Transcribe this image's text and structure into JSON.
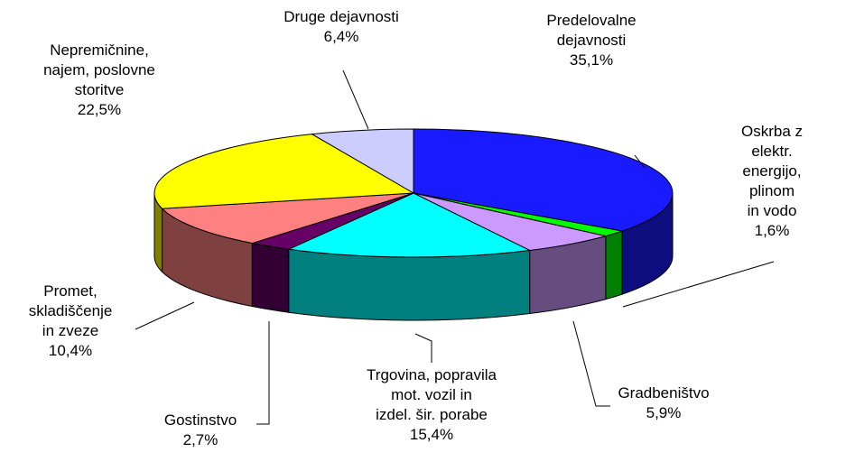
{
  "chart_data": {
    "type": "pie3d",
    "categories": [
      "Predelovalne\ndejavnosti",
      "Oskrba z elektr.\nenergijo,\nplinom\nin vodo",
      "Gradbeništvo",
      "Trgovina, popravila\nmot. vozil in\nizdel. šir. porabe",
      "Gostinstvo",
      "Promet,\nskladiščenje\nin zveze",
      "Nepremičnine,\nnajem, poslovne\nstoritve",
      "Druge dejavnosti"
    ],
    "values": [
      35.1,
      1.6,
      5.9,
      15.4,
      2.7,
      10.4,
      22.5,
      6.4
    ],
    "value_labels": [
      "35,1%",
      "1,6%",
      "5,9%",
      "15,4%",
      "2,7%",
      "10,4%",
      "22,5%",
      "6,4%"
    ],
    "colors": [
      "#1a1aff",
      "#00ff00",
      "#cc99ff",
      "#00ffff",
      "#660066",
      "#ff8080",
      "#ffff00",
      "#ccccff"
    ]
  }
}
